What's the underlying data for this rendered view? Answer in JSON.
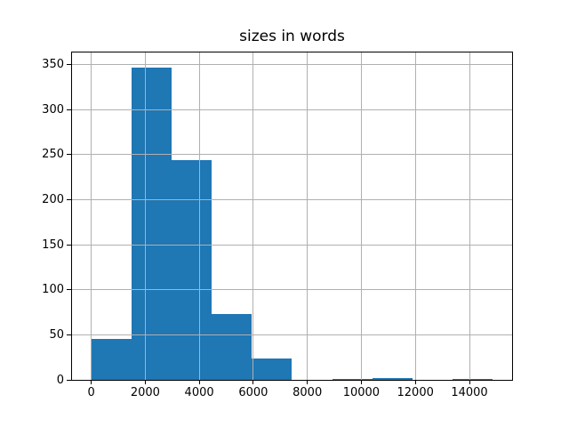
{
  "figure": {
    "background": "#ffffff"
  },
  "chart_data": {
    "type": "bar",
    "subtype": "histogram",
    "title": "sizes in words",
    "xlabel": "",
    "ylabel": "",
    "bin_edges": [
      0,
      1487,
      2974,
      4461,
      5948,
      7435,
      8922,
      10409,
      11896,
      13383,
      14870
    ],
    "counts": [
      45,
      347,
      244,
      73,
      24,
      0,
      1,
      2,
      0,
      1
    ],
    "xticks": [
      0,
      2000,
      4000,
      6000,
      8000,
      10000,
      12000,
      14000
    ],
    "yticks": [
      0,
      50,
      100,
      150,
      200,
      250,
      300,
      350
    ],
    "xlim": [
      -743.5,
      15613.5
    ],
    "ylim": [
      0,
      364.35
    ],
    "grid": true,
    "grid_above_bars": true,
    "legend": null,
    "colors": {
      "bar": "#1f77b4",
      "grid": "#b0b0b0",
      "spine": "#000000",
      "text": "#000000",
      "background": "#ffffff"
    }
  }
}
